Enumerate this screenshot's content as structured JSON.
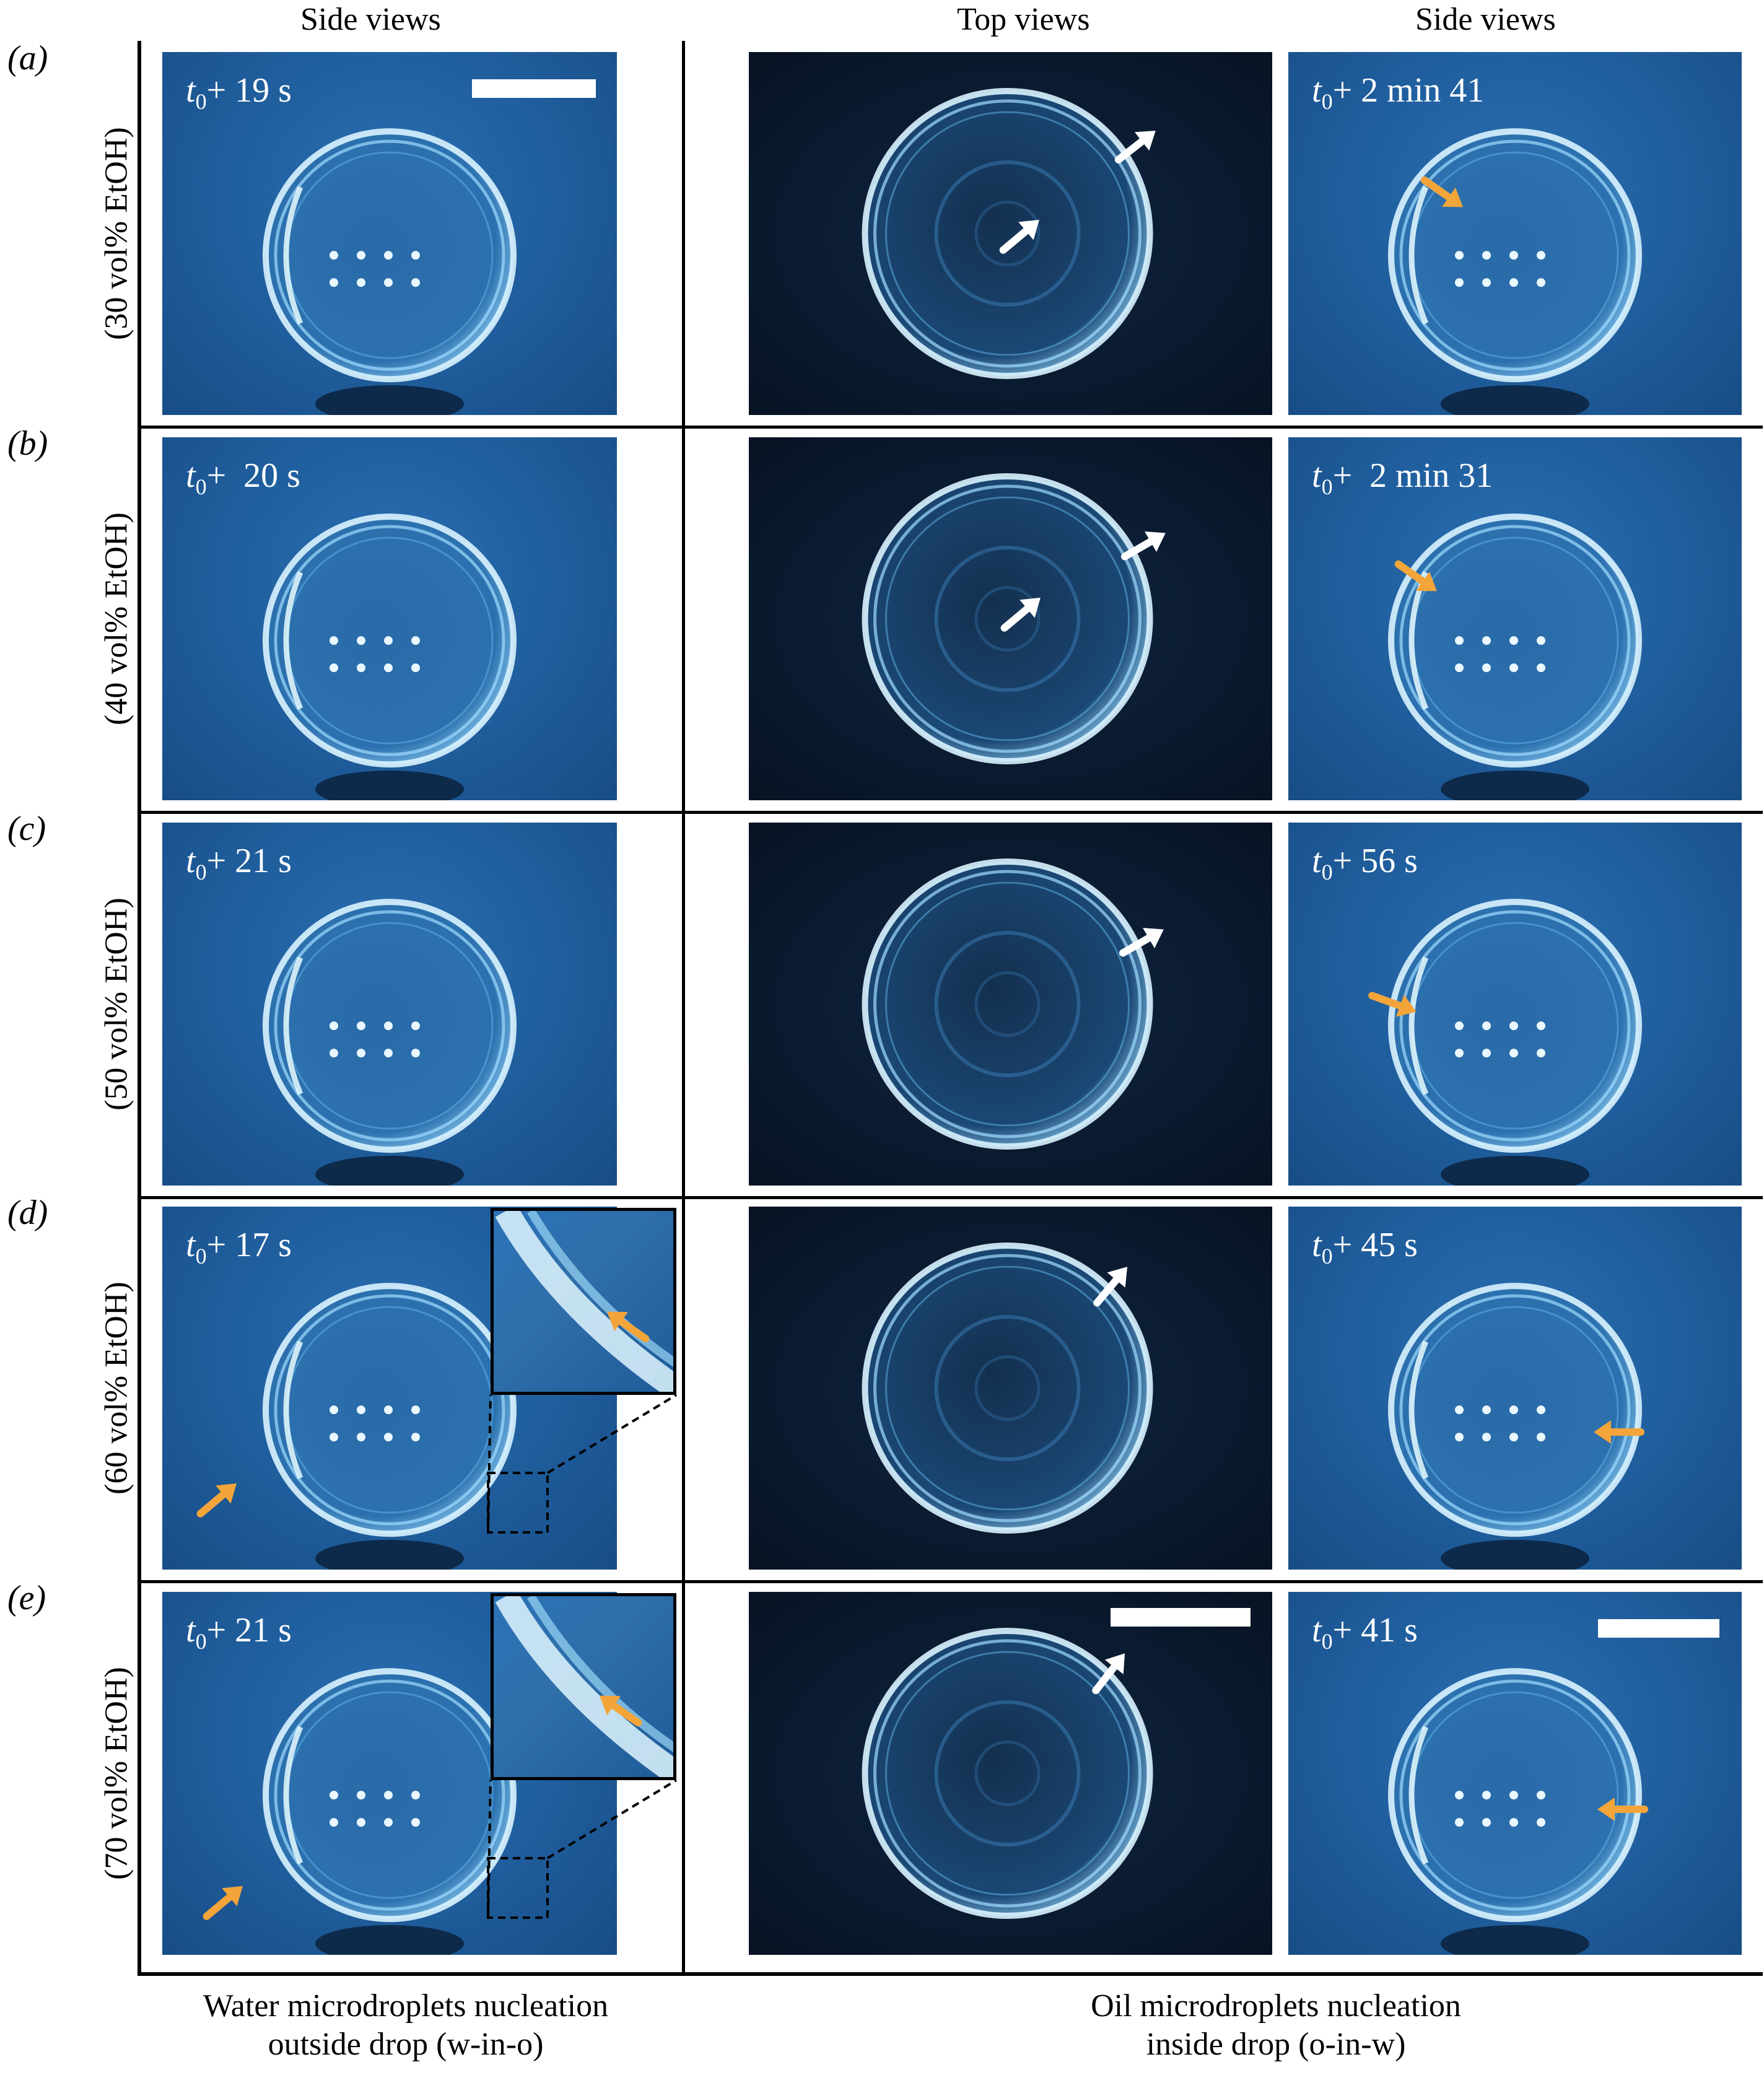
{
  "headers": {
    "left": "Side views",
    "middle": "Top views",
    "right": "Side views"
  },
  "rows": [
    {
      "letter": "(a)",
      "condition": "(30 vol% EtOH)",
      "left_time": "+ 19 s",
      "right_time": "+ 2 min 41",
      "has_inset": false
    },
    {
      "letter": "(b)",
      "condition": "(40 vol% EtOH)",
      "left_time": "+  20 s",
      "right_time": "+  2 min 31",
      "has_inset": false
    },
    {
      "letter": "(c)",
      "condition": "(50 vol% EtOH)",
      "left_time": "+ 21 s",
      "right_time": "+ 56 s",
      "has_inset": false
    },
    {
      "letter": "(d)",
      "condition": "(60 vol% EtOH)",
      "left_time": "+ 17 s",
      "right_time": "+ 45 s",
      "has_inset": true
    },
    {
      "letter": "(e)",
      "condition": "(70 vol% EtOH)",
      "left_time": "+ 21 s",
      "right_time": "+ 41 s",
      "has_inset": true
    }
  ],
  "time_symbol": "t",
  "time_subscript": "0",
  "footer": {
    "left_line1": "Water microdroplets nucleation",
    "left_line2": "outside drop (w-in-o)",
    "right_line1": "Oil microdroplets nucleation",
    "right_line2": "inside drop (o-in-w)"
  },
  "colors": {
    "side_bg": "#1f5d9c",
    "top_bg": "#0a1a30",
    "white_arrow": "#ffffff",
    "orange_arrow": "#f3a53a"
  }
}
